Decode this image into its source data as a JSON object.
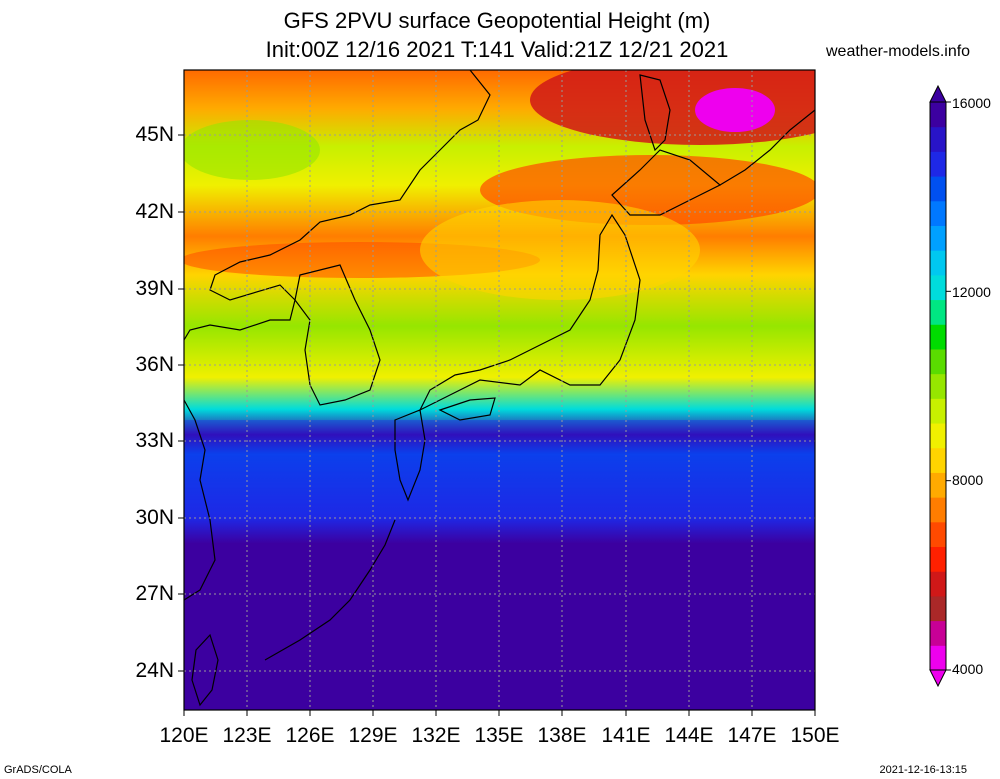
{
  "header": {
    "title_line1": "GFS 2PVU surface Geopotential Height (m)",
    "title_line2": "Init:00Z 12/16 2021 T:141 Valid:21Z 12/21 2021",
    "site": "weather-models.info"
  },
  "map": {
    "lat_labels": [
      "45N",
      "42N",
      "39N",
      "36N",
      "33N",
      "30N",
      "27N",
      "24N"
    ],
    "lon_labels": [
      "120E",
      "123E",
      "126E",
      "129E",
      "132E",
      "135E",
      "138E",
      "141E",
      "144E",
      "147E",
      "150E"
    ],
    "lat_range": [
      22.5,
      47.5
    ],
    "lon_range": [
      120,
      150
    ],
    "grid": true
  },
  "colorbar": {
    "labels": [
      "16000",
      "12000",
      "8000",
      "4000"
    ],
    "min": 4000,
    "max": 16000,
    "colors": [
      "#ee00ee",
      "#c80096",
      "#aa2828",
      "#d01818",
      "#ff2000",
      "#ff4a00",
      "#ff7d00",
      "#ffaa00",
      "#ffd400",
      "#f0f000",
      "#c8f000",
      "#96e600",
      "#5adc00",
      "#00dc00",
      "#00e682",
      "#00dcdc",
      "#00c8f0",
      "#00a0ff",
      "#0078ff",
      "#0050f0",
      "#1e28e6",
      "#2814c8",
      "#3c00a0"
    ]
  },
  "footer": {
    "left": "GrADS/COLA",
    "right": "2021-12-16-13:15"
  }
}
